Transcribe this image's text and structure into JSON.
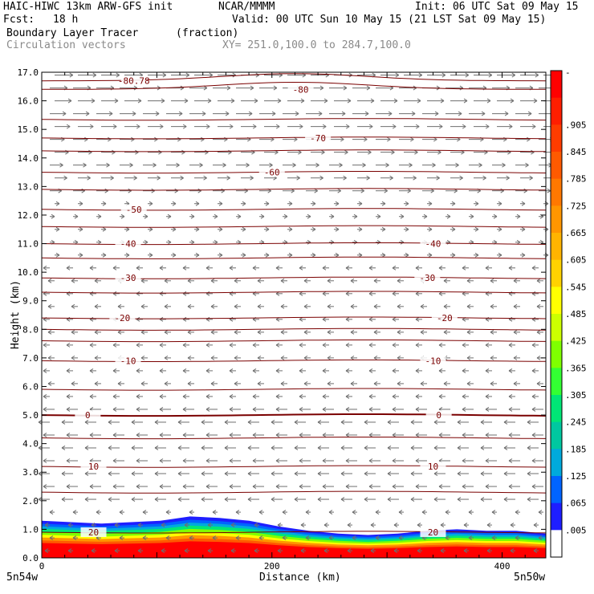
{
  "header": {
    "title_left": "HAIC-HIWC 13km ARW-GFS init",
    "org": "NCAR/MMMM",
    "init": "Init: 06 UTC Sat 09 May 15",
    "fcst_label": "Fcst:",
    "fcst_value": "18 h",
    "valid": "Valid: 00 UTC Sun 10 May 15 (21 LST Sat 09 May 15)",
    "field_name": "Boundary Layer Tracer",
    "field_units": "(fraction)",
    "vector_label": "Circulation vectors",
    "xy_label": "XY= 251.0,100.0 to 284.7,100.0"
  },
  "chart_data": {
    "type": "cross-section",
    "xlabel": "Distance (km)",
    "ylabel": "Height (km)",
    "xlim": [
      0,
      438
    ],
    "ylim": [
      0.0,
      17.0
    ],
    "x_ticks": [
      0,
      200,
      400
    ],
    "y_ticks": [
      0.0,
      1.0,
      2.0,
      3.0,
      4.0,
      5.0,
      6.0,
      7.0,
      8.0,
      9.0,
      10.0,
      11.0,
      12.0,
      13.0,
      14.0,
      15.0,
      16.0,
      17.0
    ],
    "endpoint_left": "5n54w",
    "endpoint_right": "5n50w",
    "temperature_contours": [
      {
        "label": "-80.78",
        "height": 16.7,
        "x": 80
      },
      {
        "label": "-80",
        "height": 16.4,
        "x": 225
      },
      {
        "label": "-70",
        "height": 14.7,
        "x": 240
      },
      {
        "label": "-60",
        "height": 13.5,
        "x": 200
      },
      {
        "label": "-50",
        "height": 12.2,
        "x": 80
      },
      {
        "label": "-40",
        "height": 11.0,
        "x": 75
      },
      {
        "label": "-40",
        "height": 11.0,
        "x": 340
      },
      {
        "label": "-30",
        "height": 9.8,
        "x": 75
      },
      {
        "label": "-30",
        "height": 9.8,
        "x": 335
      },
      {
        "label": "-20",
        "height": 8.4,
        "x": 70
      },
      {
        "label": "-20",
        "height": 8.4,
        "x": 350
      },
      {
        "label": "-10",
        "height": 6.9,
        "x": 75
      },
      {
        "label": "-10",
        "height": 6.9,
        "x": 340
      },
      {
        "label": "0",
        "height": 5.0,
        "x": 40
      },
      {
        "label": "0",
        "height": 5.0,
        "x": 345
      },
      {
        "label": "10",
        "height": 3.2,
        "x": 45
      },
      {
        "label": "10",
        "height": 3.2,
        "x": 340
      },
      {
        "label": "20",
        "height": 0.9,
        "x": 45
      },
      {
        "label": "20",
        "height": 0.9,
        "x": 340
      }
    ],
    "colorbar": {
      "labels": [
        "-",
        ".905",
        ".845",
        ".785",
        ".725",
        ".665",
        ".605",
        ".545",
        ".485",
        ".425",
        ".365",
        ".305",
        ".245",
        ".185",
        ".125",
        ".065",
        ".005"
      ],
      "colors": [
        "#ff0000",
        "#ff1e00",
        "#ff3c00",
        "#ff5a00",
        "#ff7800",
        "#ff9600",
        "#ffb400",
        "#ffd200",
        "#ffff00",
        "#ccff00",
        "#7fff00",
        "#33ff33",
        "#00e676",
        "#00c8a0",
        "#00aadc",
        "#0064ff",
        "#1e1eff",
        "#ffffff"
      ]
    },
    "tracer_top_height": [
      1.3,
      1.25,
      1.2,
      1.25,
      1.3,
      1.45,
      1.4,
      1.3,
      1.1,
      0.95,
      0.85,
      0.8,
      0.85,
      0.95,
      1.0,
      0.95,
      0.95,
      0.85
    ],
    "colors": {
      "contour": "#7a0000",
      "vector": "#6e6e6e",
      "frame": "#000000"
    }
  }
}
